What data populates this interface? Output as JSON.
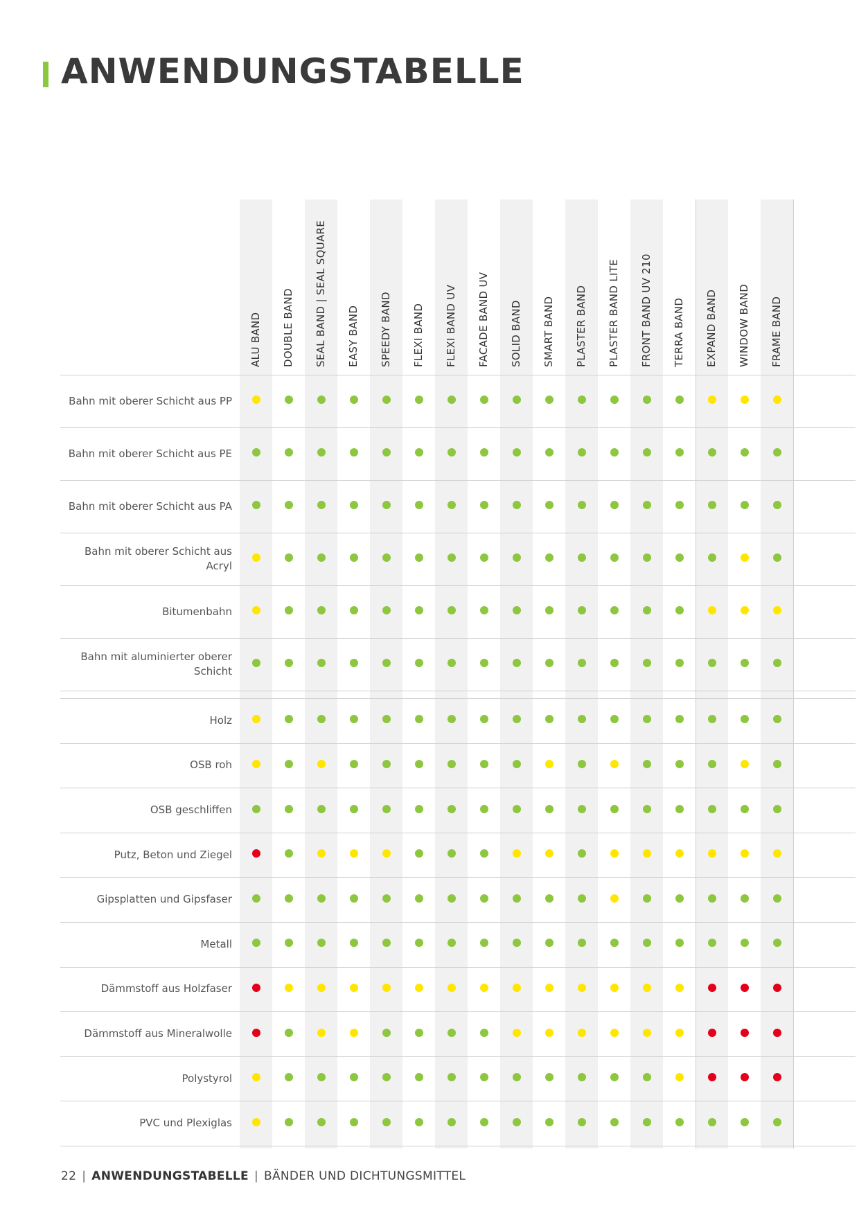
{
  "title": "ANWENDUNGSTABELLE",
  "colors": {
    "accent": "#8dc63f",
    "green": "#8dc63f",
    "yellow": "#ffe600",
    "red": "#e3001b"
  },
  "legend_map": {
    "g": "green",
    "y": "yellow",
    "r": "red"
  },
  "columns": [
    "ALU BAND",
    "DOUBLE BAND",
    "SEAL BAND | SEAL SQUARE",
    "EASY BAND",
    "SPEEDY BAND",
    "FLEXI BAND",
    "FLEXI BAND UV",
    "FACADE BAND UV",
    "SOLID BAND",
    "SMART BAND",
    "PLASTER BAND",
    "PLASTER BAND LITE",
    "FRONT BAND UV 210",
    "TERRA BAND",
    "EXPAND BAND",
    "WINDOW BAND",
    "FRAME BAND"
  ],
  "groups": [
    {
      "rows": [
        {
          "label": "Bahn mit oberer Schicht aus PP",
          "values": [
            "y",
            "g",
            "g",
            "g",
            "g",
            "g",
            "g",
            "g",
            "g",
            "g",
            "g",
            "g",
            "g",
            "g",
            "y",
            "y",
            "y"
          ]
        },
        {
          "label": "Bahn mit oberer Schicht aus PE",
          "values": [
            "g",
            "g",
            "g",
            "g",
            "g",
            "g",
            "g",
            "g",
            "g",
            "g",
            "g",
            "g",
            "g",
            "g",
            "g",
            "g",
            "g"
          ]
        },
        {
          "label": "Bahn mit oberer Schicht aus PA",
          "values": [
            "g",
            "g",
            "g",
            "g",
            "g",
            "g",
            "g",
            "g",
            "g",
            "g",
            "g",
            "g",
            "g",
            "g",
            "g",
            "g",
            "g"
          ]
        },
        {
          "label": "Bahn mit oberer Schicht aus Acryl",
          "values": [
            "y",
            "g",
            "g",
            "g",
            "g",
            "g",
            "g",
            "g",
            "g",
            "g",
            "g",
            "g",
            "g",
            "g",
            "g",
            "y",
            "g"
          ]
        },
        {
          "label": "Bitumenbahn",
          "values": [
            "y",
            "g",
            "g",
            "g",
            "g",
            "g",
            "g",
            "g",
            "g",
            "g",
            "g",
            "g",
            "g",
            "g",
            "y",
            "y",
            "y"
          ]
        },
        {
          "label": "Bahn mit aluminierter oberer Schicht",
          "values": [
            "g",
            "g",
            "g",
            "g",
            "g",
            "g",
            "g",
            "g",
            "g",
            "g",
            "g",
            "g",
            "g",
            "g",
            "g",
            "g",
            "g"
          ]
        }
      ]
    },
    {
      "rows": [
        {
          "label": "Holz",
          "values": [
            "y",
            "g",
            "g",
            "g",
            "g",
            "g",
            "g",
            "g",
            "g",
            "g",
            "g",
            "g",
            "g",
            "g",
            "g",
            "g",
            "g"
          ]
        },
        {
          "label": "OSB roh",
          "values": [
            "y",
            "g",
            "y",
            "g",
            "g",
            "g",
            "g",
            "g",
            "g",
            "y",
            "g",
            "y",
            "g",
            "g",
            "g",
            "y",
            "g"
          ]
        },
        {
          "label": "OSB geschliffen",
          "values": [
            "g",
            "g",
            "g",
            "g",
            "g",
            "g",
            "g",
            "g",
            "g",
            "g",
            "g",
            "g",
            "g",
            "g",
            "g",
            "g",
            "g"
          ]
        },
        {
          "label": "Putz, Beton und Ziegel",
          "values": [
            "r",
            "g",
            "y",
            "y",
            "y",
            "g",
            "g",
            "g",
            "y",
            "y",
            "g",
            "y",
            "y",
            "y",
            "y",
            "y",
            "y"
          ]
        },
        {
          "label": "Gipsplatten und Gipsfaser",
          "values": [
            "g",
            "g",
            "g",
            "g",
            "g",
            "g",
            "g",
            "g",
            "g",
            "g",
            "g",
            "y",
            "g",
            "g",
            "g",
            "g",
            "g"
          ]
        },
        {
          "label": "Metall",
          "values": [
            "g",
            "g",
            "g",
            "g",
            "g",
            "g",
            "g",
            "g",
            "g",
            "g",
            "g",
            "g",
            "g",
            "g",
            "g",
            "g",
            "g"
          ]
        },
        {
          "label": "Dämmstoff aus Holzfaser",
          "values": [
            "r",
            "y",
            "y",
            "y",
            "y",
            "y",
            "y",
            "y",
            "y",
            "y",
            "y",
            "y",
            "y",
            "y",
            "r",
            "r",
            "r"
          ]
        },
        {
          "label": "Dämmstoff aus Mineralwolle",
          "values": [
            "r",
            "g",
            "y",
            "y",
            "g",
            "g",
            "g",
            "g",
            "y",
            "y",
            "y",
            "y",
            "y",
            "y",
            "r",
            "r",
            "r"
          ]
        },
        {
          "label": "Polystyrol",
          "values": [
            "y",
            "g",
            "g",
            "g",
            "g",
            "g",
            "g",
            "g",
            "g",
            "g",
            "g",
            "g",
            "g",
            "y",
            "r",
            "r",
            "r"
          ]
        },
        {
          "label": "PVC und Plexiglas",
          "values": [
            "y",
            "g",
            "g",
            "g",
            "g",
            "g",
            "g",
            "g",
            "g",
            "g",
            "g",
            "g",
            "g",
            "g",
            "g",
            "g",
            "g"
          ]
        }
      ]
    }
  ],
  "footer": {
    "page": "22",
    "section": "ANWENDUNGSTABELLE",
    "subtitle": "BÄNDER UND DICHTUNGSMITTEL",
    "separator": "|"
  }
}
